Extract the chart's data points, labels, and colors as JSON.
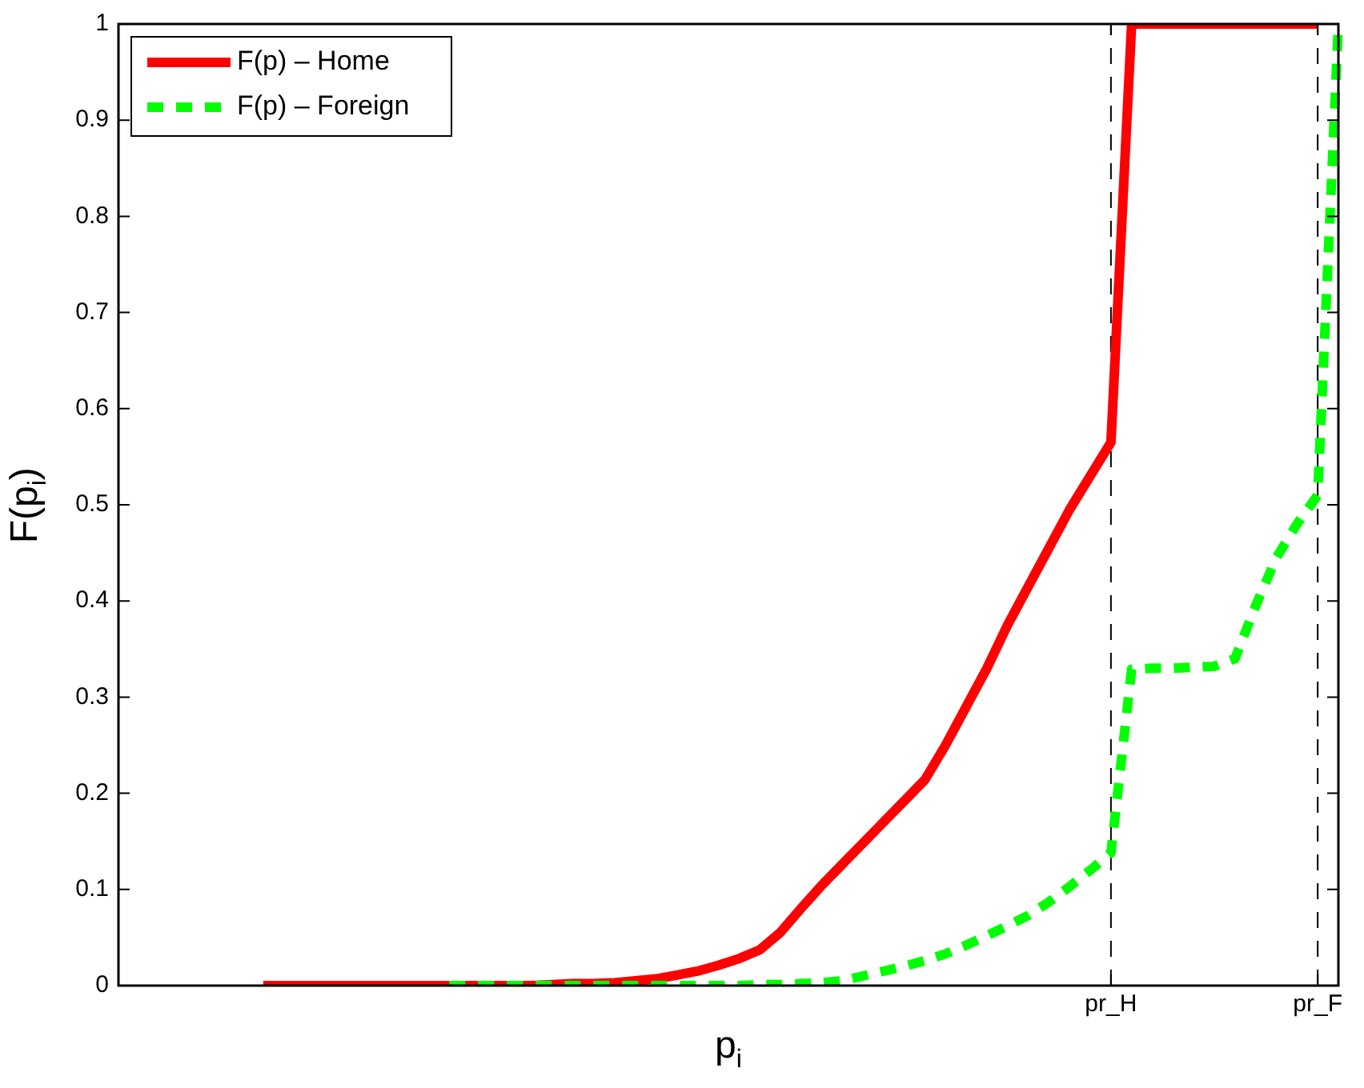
{
  "chart_data": {
    "type": "line",
    "xlabel": "p$_{i}$",
    "ylabel": "F(p$_{i}$)",
    "categories": [
      null,
      null,
      null,
      null,
      null,
      null,
      null,
      null,
      null,
      null,
      null,
      null,
      null,
      null,
      null,
      null,
      null,
      null,
      null,
      null,
      null,
      null,
      null,
      null,
      null,
      null,
      null,
      null,
      null,
      null,
      null,
      null,
      null,
      null,
      null,
      null,
      null,
      null,
      null,
      null,
      null,
      null,
      null,
      null,
      null,
      null,
      null,
      null,
      "pr_H",
      null,
      null,
      null,
      null,
      null,
      null,
      null,
      null,
      null,
      "pr_F",
      null
    ],
    "ylim": [
      0,
      1
    ],
    "yticks": [
      0,
      0.1,
      0.2,
      0.3,
      0.4,
      0.5,
      0.6,
      0.7,
      0.8,
      0.9,
      1
    ],
    "grid": false,
    "legend": "top left",
    "marker": "none",
    "ref_lines": [
      {
        "axis": "x",
        "value": "pr_H",
        "color": "#000000",
        "line_style": "dashed"
      },
      {
        "axis": "x",
        "value": "pr_F",
        "color": "#000000",
        "line_style": "dashed"
      }
    ],
    "series": [
      {
        "name": "F(p) – Home",
        "color": "#ff0000",
        "line_style": "solid",
        "values": [
          null,
          null,
          null,
          null,
          null,
          null,
          null,
          0,
          0,
          0,
          0,
          0,
          0,
          0,
          0,
          0,
          0,
          0,
          0,
          0,
          0,
          0.001,
          0.002,
          0.002,
          0.003,
          0.005,
          0.007,
          0.011,
          0.015,
          0.021,
          0.028,
          0.037,
          0.055,
          0.08,
          0.104,
          0.126,
          0.148,
          0.17,
          0.192,
          0.214,
          0.25,
          0.29,
          0.33,
          0.375,
          0.415,
          0.455,
          0.495,
          0.53,
          0.565,
          1,
          1,
          1,
          1,
          1,
          1,
          1,
          1,
          1,
          1,
          null
        ]
      },
      {
        "name": "F(p) – Foreign",
        "color": "#00ff00",
        "line_style": "dashed",
        "values": [
          null,
          null,
          null,
          null,
          null,
          null,
          null,
          null,
          null,
          null,
          null,
          null,
          null,
          null,
          null,
          null,
          0,
          0,
          0,
          0,
          0,
          0,
          0,
          0,
          0,
          0,
          0,
          0,
          0,
          0,
          0,
          0.001,
          0.001,
          0.002,
          0.003,
          0.005,
          0.01,
          0.015,
          0.02,
          0.026,
          0.033,
          0.042,
          0.052,
          0.062,
          0.073,
          0.087,
          0.103,
          0.12,
          0.138,
          0.329,
          0.33,
          0.33,
          0.331,
          0.332,
          0.34,
          0.395,
          0.445,
          0.48,
          0.51,
          1
        ]
      }
    ]
  }
}
